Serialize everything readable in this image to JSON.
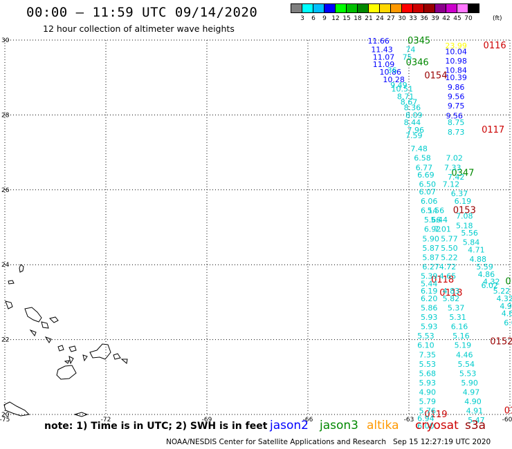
{
  "header": {
    "title": "00:00 – 11:59 UTC 09/14/2020",
    "subtitle": "12 hour collection of altimeter wave heights"
  },
  "colorbar": {
    "colors": [
      "#7f7f7f",
      "#00ffff",
      "#00bfff",
      "#0000ff",
      "#00ff00",
      "#00bf00",
      "#008800",
      "#ffff00",
      "#ffd700",
      "#ff9900",
      "#ff0000",
      "#cc0000",
      "#990000",
      "#8b008b",
      "#cc00cc",
      "#ff77ff",
      "#000000"
    ],
    "ticks": [
      "3",
      "6",
      "9",
      "12",
      "15",
      "18",
      "21",
      "24",
      "27",
      "30",
      "33",
      "36",
      "39",
      "42",
      "45",
      "70"
    ],
    "unit": "(ft)"
  },
  "footer": {
    "note": "note: 1) Time is in UTC; 2) SWH is in feet",
    "satellites": [
      {
        "name": "jason2",
        "color": "#0000ff"
      },
      {
        "name": "jason3",
        "color": "#008800"
      },
      {
        "name": "altika",
        "color": "#ff9900"
      },
      {
        "name": "cryosat",
        "color": "#cc0000"
      },
      {
        "name": "s3a",
        "color": "#990000"
      }
    ],
    "credit": "NOAA/NESDIS Center for Satellite Applications and Research",
    "timestamp": "Sep 15 12:27:19 UTC 2020"
  },
  "chart_data": {
    "type": "scatter",
    "title": "00:00 – 11:59 UTC 09/14/2020",
    "subtitle": "12 hour collection of altimeter wave heights",
    "xlabel": "",
    "ylabel": "",
    "xlim": [
      -75,
      -60
    ],
    "ylim": [
      20,
      30
    ],
    "grid": true,
    "x_ticks": [
      "-75",
      "-72",
      "-69",
      "-66",
      "-63",
      "-60"
    ],
    "y_ticks": [
      "30",
      "28",
      "26",
      "24",
      "22",
      "20"
    ],
    "series": [
      {
        "name": "jason2",
        "color": "#0000ff",
        "points": [
          {
            "lon": -61.6,
            "lat": 29.7,
            "value": "10.04"
          },
          {
            "lon": -61.6,
            "lat": 29.45,
            "value": "10.98"
          },
          {
            "lon": -61.6,
            "lat": 29.2,
            "value": "10.84"
          },
          {
            "lon": -61.6,
            "lat": 29.0,
            "value": "10.39"
          },
          {
            "lon": -61.6,
            "lat": 28.75,
            "value": "9.86"
          },
          {
            "lon": -61.6,
            "lat": 28.5,
            "value": "9.56"
          },
          {
            "lon": -61.6,
            "lat": 28.25,
            "value": "9.75"
          },
          {
            "lon": -61.65,
            "lat": 27.98,
            "value": "9.56"
          },
          {
            "lon": -63.9,
            "lat": 29.98,
            "value": "11.66"
          },
          {
            "lon": -63.8,
            "lat": 29.75,
            "value": "11.43"
          },
          {
            "lon": -63.75,
            "lat": 29.55,
            "value": "11.07"
          },
          {
            "lon": -63.75,
            "lat": 29.35,
            "value": "11.09"
          },
          {
            "lon": -63.55,
            "lat": 29.15,
            "value": "10.86"
          },
          {
            "lon": -63.45,
            "lat": 28.95,
            "value": "10.28"
          }
        ]
      },
      {
        "name": "jason3",
        "color": "#008800",
        "points": [
          {
            "lon": -62.7,
            "lat": 29.98,
            "value": "0345"
          },
          {
            "lon": -62.75,
            "lat": 29.4,
            "value": "0346"
          },
          {
            "lon": -61.4,
            "lat": 26.45,
            "value": "0347"
          },
          {
            "lon": -60.05,
            "lat": 23.55,
            "value": "0"
          }
        ]
      },
      {
        "name": "altika",
        "color": "#ffff00",
        "points": [
          {
            "lon": -61.6,
            "lat": 29.85,
            "value": "23.99"
          }
        ]
      },
      {
        "name": "cryosat",
        "color": "#cc0000",
        "points": [
          {
            "lon": -60.45,
            "lat": 29.85,
            "value": "0116"
          },
          {
            "lon": -60.5,
            "lat": 27.6,
            "value": "0117"
          },
          {
            "lon": -62.0,
            "lat": 23.6,
            "value": "0118"
          },
          {
            "lon": -61.75,
            "lat": 23.25,
            "value": "0118"
          },
          {
            "lon": -62.2,
            "lat": 20.0,
            "value": "0119"
          },
          {
            "lon": -60.0,
            "lat": 20.1,
            "value": "01"
          }
        ]
      },
      {
        "name": "s3a",
        "color": "#990000",
        "points": [
          {
            "lon": -62.2,
            "lat": 29.05,
            "value": "0154"
          },
          {
            "lon": -61.35,
            "lat": 25.45,
            "value": "0153"
          },
          {
            "lon": -60.25,
            "lat": 21.95,
            "value": "0152"
          }
        ]
      },
      {
        "name": "wave-height-cyan",
        "color": "#00cccc",
        "points": [
          {
            "lon": -62.95,
            "lat": 29.75,
            "value": "74"
          },
          {
            "lon": -63.05,
            "lat": 29.55,
            "value": "75"
          },
          {
            "lon": -63.5,
            "lat": 29.2,
            "value": "36"
          },
          {
            "lon": -63.3,
            "lat": 28.8,
            "value": "9.49"
          },
          {
            "lon": -63.2,
            "lat": 28.7,
            "value": "10.51"
          },
          {
            "lon": -63.1,
            "lat": 28.5,
            "value": "8.71"
          },
          {
            "lon": -63.0,
            "lat": 28.35,
            "value": "8.67"
          },
          {
            "lon": -62.9,
            "lat": 28.2,
            "value": "8.36"
          },
          {
            "lon": -62.85,
            "lat": 28.0,
            "value": "8.09"
          },
          {
            "lon": -62.9,
            "lat": 27.8,
            "value": "8.44"
          },
          {
            "lon": -62.8,
            "lat": 27.6,
            "value": "7.96"
          },
          {
            "lon": -62.85,
            "lat": 27.45,
            "value": "7.59"
          },
          {
            "lon": -61.6,
            "lat": 27.8,
            "value": "8.75"
          },
          {
            "lon": -61.6,
            "lat": 27.55,
            "value": "8.73"
          },
          {
            "lon": -62.7,
            "lat": 27.1,
            "value": "7.48"
          },
          {
            "lon": -62.6,
            "lat": 26.85,
            "value": "6.58"
          },
          {
            "lon": -62.55,
            "lat": 26.6,
            "value": "6.77"
          },
          {
            "lon": -62.5,
            "lat": 26.4,
            "value": "6.69"
          },
          {
            "lon": -62.45,
            "lat": 26.15,
            "value": "6.50"
          },
          {
            "lon": -62.45,
            "lat": 25.95,
            "value": "6.07"
          },
          {
            "lon": -62.4,
            "lat": 25.7,
            "value": "6.06"
          },
          {
            "lon": -61.65,
            "lat": 26.85,
            "value": "7.02"
          },
          {
            "lon": -61.7,
            "lat": 26.6,
            "value": "7.33"
          },
          {
            "lon": -61.6,
            "lat": 26.35,
            "value": "7.42"
          },
          {
            "lon": -61.75,
            "lat": 26.15,
            "value": "7.12"
          },
          {
            "lon": -61.5,
            "lat": 25.9,
            "value": "6.37"
          },
          {
            "lon": -61.4,
            "lat": 25.7,
            "value": "6.19"
          },
          {
            "lon": -62.4,
            "lat": 25.45,
            "value": "6.14"
          },
          {
            "lon": -62.2,
            "lat": 25.45,
            "value": "5.56"
          },
          {
            "lon": -62.3,
            "lat": 25.2,
            "value": "5.66"
          },
          {
            "lon": -62.1,
            "lat": 25.2,
            "value": "5.44"
          },
          {
            "lon": -62.3,
            "lat": 24.95,
            "value": "6.92"
          },
          {
            "lon": -62.0,
            "lat": 24.95,
            "value": "7.01"
          },
          {
            "lon": -61.35,
            "lat": 25.3,
            "value": "7.08"
          },
          {
            "lon": -61.35,
            "lat": 25.05,
            "value": "5.18"
          },
          {
            "lon": -61.2,
            "lat": 24.85,
            "value": "5.56"
          },
          {
            "lon": -61.8,
            "lat": 24.7,
            "value": "5.77"
          },
          {
            "lon": -62.35,
            "lat": 24.7,
            "value": "5.90"
          },
          {
            "lon": -61.15,
            "lat": 24.6,
            "value": "5.84"
          },
          {
            "lon": -62.35,
            "lat": 24.45,
            "value": "5.87"
          },
          {
            "lon": -61.8,
            "lat": 24.45,
            "value": "5.50"
          },
          {
            "lon": -61.0,
            "lat": 24.4,
            "value": "4.71"
          },
          {
            "lon": -62.35,
            "lat": 24.2,
            "value": "5.87"
          },
          {
            "lon": -61.8,
            "lat": 24.2,
            "value": "5.22"
          },
          {
            "lon": -60.95,
            "lat": 24.15,
            "value": "4.88"
          },
          {
            "lon": -62.35,
            "lat": 23.95,
            "value": "6.27"
          },
          {
            "lon": -61.85,
            "lat": 23.95,
            "value": "4.72"
          },
          {
            "lon": -60.75,
            "lat": 23.95,
            "value": "5.59"
          },
          {
            "lon": -62.4,
            "lat": 23.7,
            "value": "5.39"
          },
          {
            "lon": -61.85,
            "lat": 23.7,
            "value": "4.65"
          },
          {
            "lon": -60.7,
            "lat": 23.75,
            "value": "4.86"
          },
          {
            "lon": -60.55,
            "lat": 23.55,
            "value": "4.32"
          },
          {
            "lon": -62.4,
            "lat": 23.5,
            "value": "5.44"
          },
          {
            "lon": -60.6,
            "lat": 23.45,
            "value": "6.02"
          },
          {
            "lon": -62.4,
            "lat": 23.3,
            "value": "6.19"
          },
          {
            "lon": -61.75,
            "lat": 23.3,
            "value": "4.83"
          },
          {
            "lon": -60.25,
            "lat": 23.3,
            "value": "5.22"
          },
          {
            "lon": -62.4,
            "lat": 23.1,
            "value": "6.20"
          },
          {
            "lon": -61.75,
            "lat": 23.1,
            "value": "5.82"
          },
          {
            "lon": -60.15,
            "lat": 23.1,
            "value": "4.32"
          },
          {
            "lon": -62.4,
            "lat": 22.85,
            "value": "5.86"
          },
          {
            "lon": -61.6,
            "lat": 22.85,
            "value": "5.37"
          },
          {
            "lon": -60.05,
            "lat": 22.9,
            "value": "4.93"
          },
          {
            "lon": -62.4,
            "lat": 22.6,
            "value": "5.93"
          },
          {
            "lon": -61.55,
            "lat": 22.6,
            "value": "5.31"
          },
          {
            "lon": -60.0,
            "lat": 22.7,
            "value": "4.63"
          },
          {
            "lon": -62.4,
            "lat": 22.35,
            "value": "5.93"
          },
          {
            "lon": -61.5,
            "lat": 22.35,
            "value": "6.16"
          },
          {
            "lon": -60.0,
            "lat": 22.45,
            "value": "6.0"
          },
          {
            "lon": -62.5,
            "lat": 22.1,
            "value": "5.53"
          },
          {
            "lon": -61.45,
            "lat": 22.1,
            "value": "5.16"
          },
          {
            "lon": -62.5,
            "lat": 21.85,
            "value": "6.10"
          },
          {
            "lon": -61.4,
            "lat": 21.85,
            "value": "5.19"
          },
          {
            "lon": -62.45,
            "lat": 21.6,
            "value": "7.35"
          },
          {
            "lon": -61.35,
            "lat": 21.6,
            "value": "4.46"
          },
          {
            "lon": -62.45,
            "lat": 21.35,
            "value": "5.53"
          },
          {
            "lon": -61.3,
            "lat": 21.35,
            "value": "5.54"
          },
          {
            "lon": -62.45,
            "lat": 21.1,
            "value": "5.68"
          },
          {
            "lon": -61.25,
            "lat": 21.1,
            "value": "5.53"
          },
          {
            "lon": -62.45,
            "lat": 20.85,
            "value": "5.93"
          },
          {
            "lon": -61.2,
            "lat": 20.85,
            "value": "5.90"
          },
          {
            "lon": -62.45,
            "lat": 20.6,
            "value": "4.90"
          },
          {
            "lon": -61.15,
            "lat": 20.6,
            "value": "4.97"
          },
          {
            "lon": -62.45,
            "lat": 20.35,
            "value": "5.79"
          },
          {
            "lon": -61.1,
            "lat": 20.35,
            "value": "4.90"
          },
          {
            "lon": -62.45,
            "lat": 20.1,
            "value": "5.76"
          },
          {
            "lon": -61.05,
            "lat": 20.1,
            "value": "4.91"
          },
          {
            "lon": -62.5,
            "lat": 19.9,
            "value": "6.94"
          },
          {
            "lon": -61.0,
            "lat": 19.85,
            "value": "5.47"
          },
          {
            "lon": -62.5,
            "lat": 19.7,
            "value": "6.00"
          }
        ]
      }
    ]
  }
}
